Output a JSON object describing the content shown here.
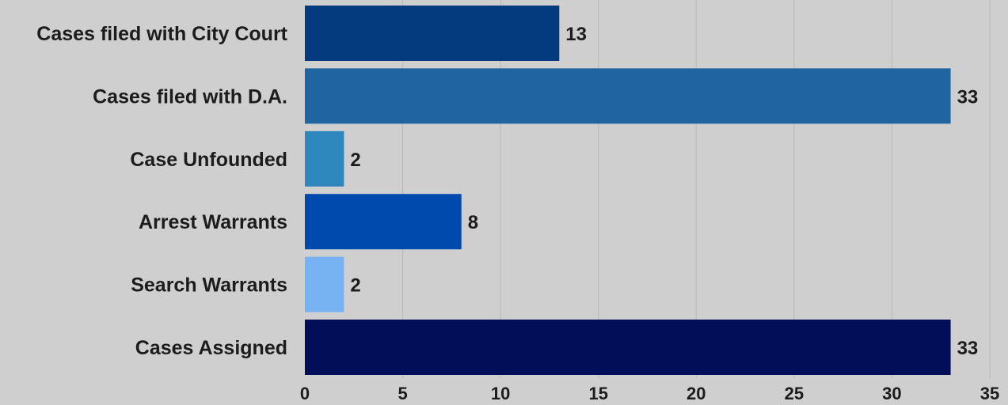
{
  "chart_data": {
    "type": "bar",
    "orientation": "horizontal",
    "title": "",
    "xlabel": "",
    "ylabel": "",
    "categories": [
      "Cases filed with City Court",
      "Cases filed with D.A.",
      "Case Unfounded",
      "Arrest Warrants",
      "Search Warrants",
      "Cases Assigned"
    ],
    "values": [
      13,
      33,
      2,
      8,
      2,
      33
    ],
    "value_labels": [
      "13",
      "33",
      "2",
      "8",
      "2",
      "33"
    ],
    "colors": [
      "#033b7e",
      "#2065a2",
      "#2e88bd",
      "#004aad",
      "#77b3f2",
      "#020e58"
    ],
    "xlim": [
      0,
      35
    ],
    "xticks": [
      "0",
      "5",
      "10",
      "15",
      "20",
      "25",
      "30",
      "35"
    ],
    "grid": "vertical",
    "legend": "none",
    "background": "#cfcfcf"
  }
}
